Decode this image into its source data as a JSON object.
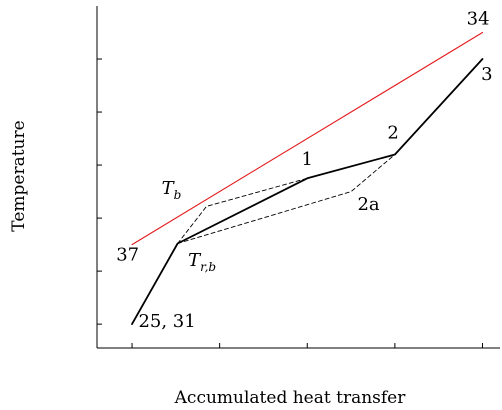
{
  "chart_data": {
    "type": "line",
    "xlabel": "Accumulated heat transfer",
    "ylabel": "Temperature",
    "grid": false,
    "legend": "none",
    "axis_labels_visible": false,
    "x_ticks": [
      0,
      1,
      2,
      3,
      4
    ],
    "y_ticks": [
      0,
      1,
      2,
      3,
      4,
      5
    ],
    "xlim": [
      -0.4,
      4.2
    ],
    "ylim": [
      -0.45,
      6.0
    ],
    "series": [
      {
        "style": "solid-black",
        "color": "#000000",
        "x": [
          0.0,
          0.52,
          2.0,
          3.0,
          4.0
        ],
        "y": [
          0.0,
          1.52,
          2.75,
          3.2,
          5.0
        ]
      },
      {
        "style": "solid-red",
        "color": "#e41a1c",
        "x": [
          0.0,
          4.0
        ],
        "y": [
          1.5,
          5.5
        ]
      },
      {
        "style": "dashed-black",
        "color": "#000000",
        "x": [
          0.52,
          0.85,
          2.0
        ],
        "y": [
          1.52,
          2.22,
          2.75
        ]
      },
      {
        "style": "dashed-black",
        "color": "#000000",
        "x": [
          0.52,
          2.5,
          3.0
        ],
        "y": [
          1.52,
          2.5,
          3.2
        ]
      }
    ],
    "annotations": [
      {
        "id": "label-34",
        "text": "34",
        "x": 3.95,
        "y": 5.65
      },
      {
        "id": "label-3",
        "text": "3",
        "x": 4.05,
        "y": 4.6
      },
      {
        "id": "label-2",
        "text": "2",
        "x": 2.98,
        "y": 3.5
      },
      {
        "id": "label-1",
        "text": "1",
        "x": 2.0,
        "y": 3.0
      },
      {
        "id": "label-2a",
        "text": "2a",
        "x": 2.7,
        "y": 2.15
      },
      {
        "id": "label-tb",
        "text": "T",
        "sub": "b",
        "x": 0.45,
        "y": 2.45
      },
      {
        "id": "label-trb",
        "text": "T",
        "sub": "r,b",
        "x": 0.8,
        "y": 1.1
      },
      {
        "id": "label-37",
        "text": "37",
        "x": -0.05,
        "y": 1.2
      },
      {
        "id": "label-2531",
        "text": "25, 31",
        "x": 0.4,
        "y": -0.05
      }
    ]
  }
}
